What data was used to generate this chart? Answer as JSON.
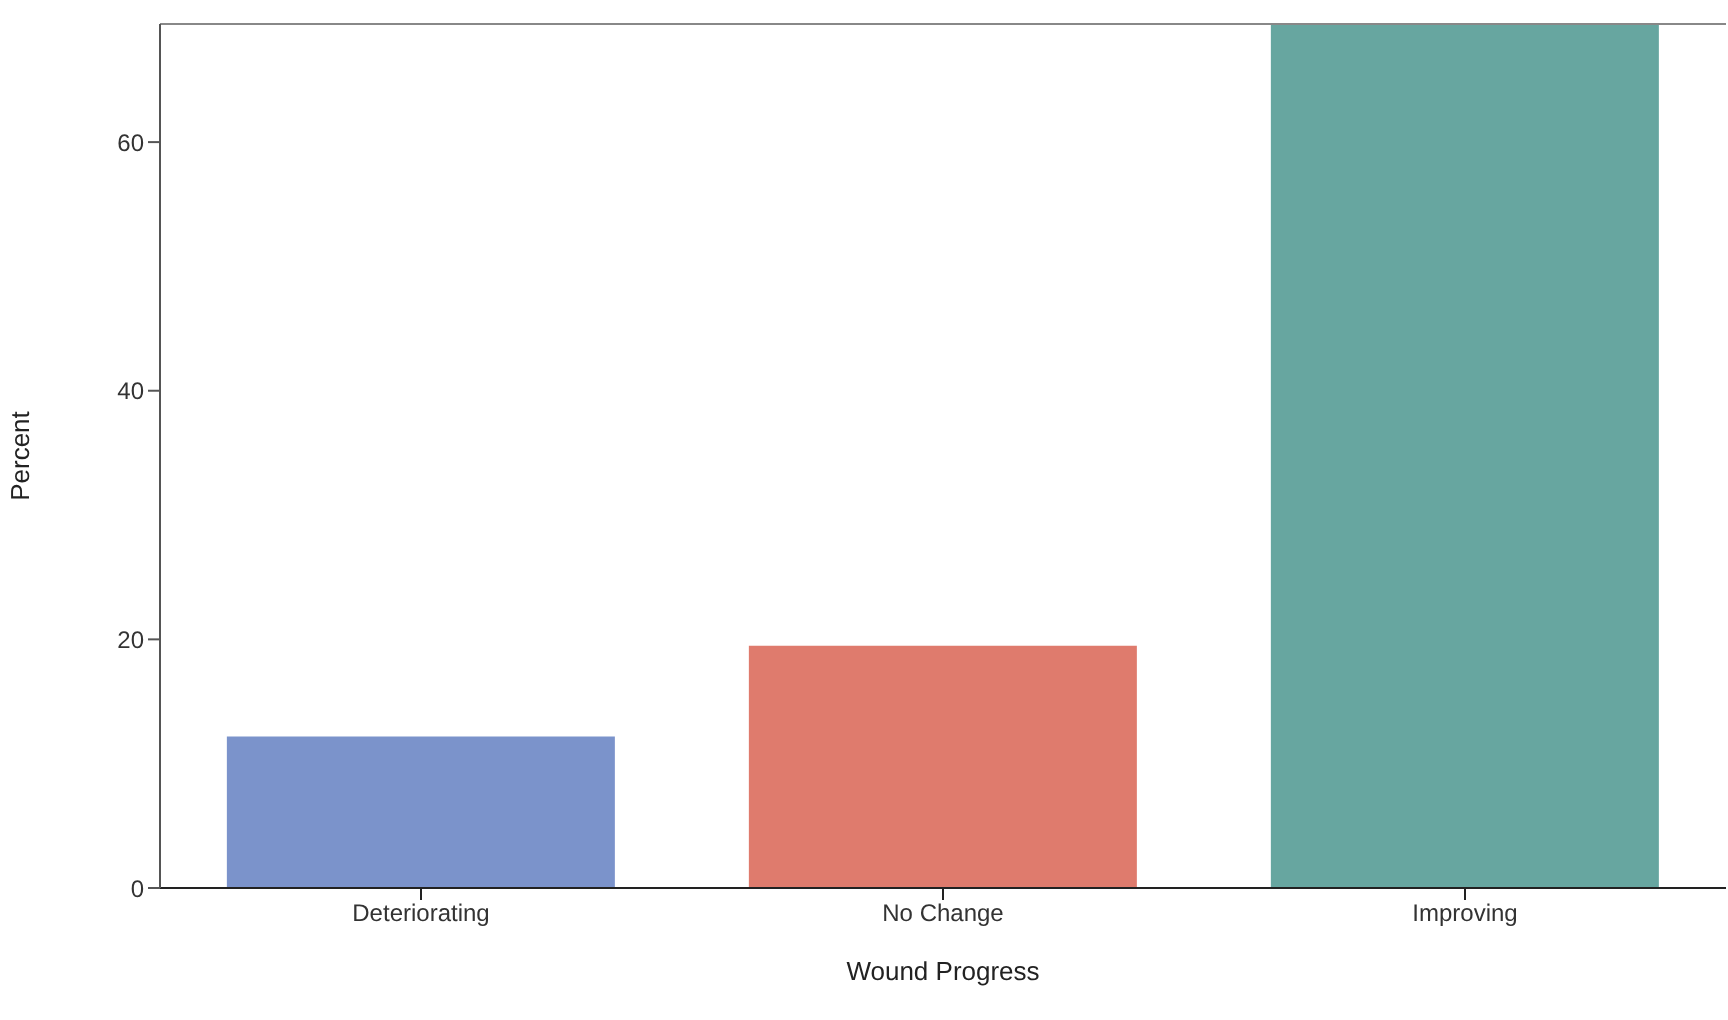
{
  "chart_data": {
    "type": "bar",
    "xlabel": "Wound Progress",
    "ylabel": "Percent",
    "categories": [
      "Deteriorating",
      "No Change",
      "Improving"
    ],
    "values": [
      12.1,
      19.4,
      69.5
    ],
    "colors": [
      "#7b93cb",
      "#df7b6d",
      "#67a6a0"
    ],
    "ylim": [
      0,
      69.5
    ],
    "yticks": [
      0,
      20,
      40,
      60
    ],
    "grid": false,
    "legend": false
  }
}
